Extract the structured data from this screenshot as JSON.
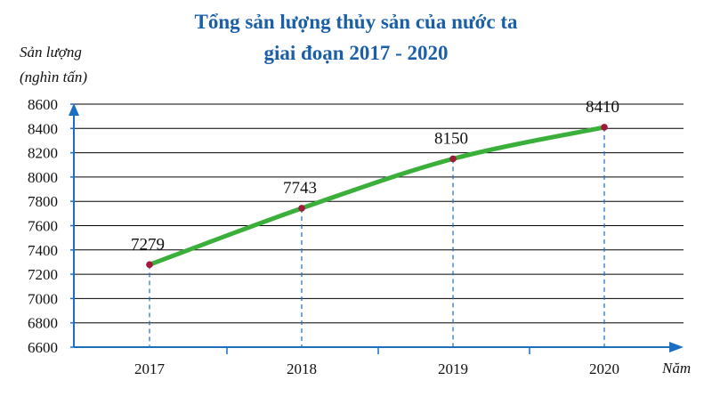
{
  "chart_data": {
    "type": "line",
    "title_line1": "Tổng sản lượng thủy sản của nước ta",
    "title_line2": "giai đoạn 2017 - 2020",
    "ylabel_line1": "Sản lượng",
    "ylabel_line2": "(nghìn tấn)",
    "xlabel": "Năm",
    "categories": [
      "2017",
      "2018",
      "2019",
      "2020"
    ],
    "values": [
      7279,
      7743,
      8150,
      8410
    ],
    "data_labels": [
      "7279",
      "7743",
      "8150",
      "8410"
    ],
    "yticks": [
      6600,
      6800,
      7000,
      7200,
      7400,
      7600,
      7800,
      8000,
      8200,
      8400,
      8600
    ],
    "ylim": [
      6600,
      8600
    ],
    "grid": true,
    "colors": {
      "title": "#1a5fa8",
      "axis": "#1a6fc4",
      "grid": "#000000",
      "line": "#3ab03a",
      "point": "#a0183a",
      "label": "#111111",
      "guide": "#1a6fc4"
    }
  }
}
